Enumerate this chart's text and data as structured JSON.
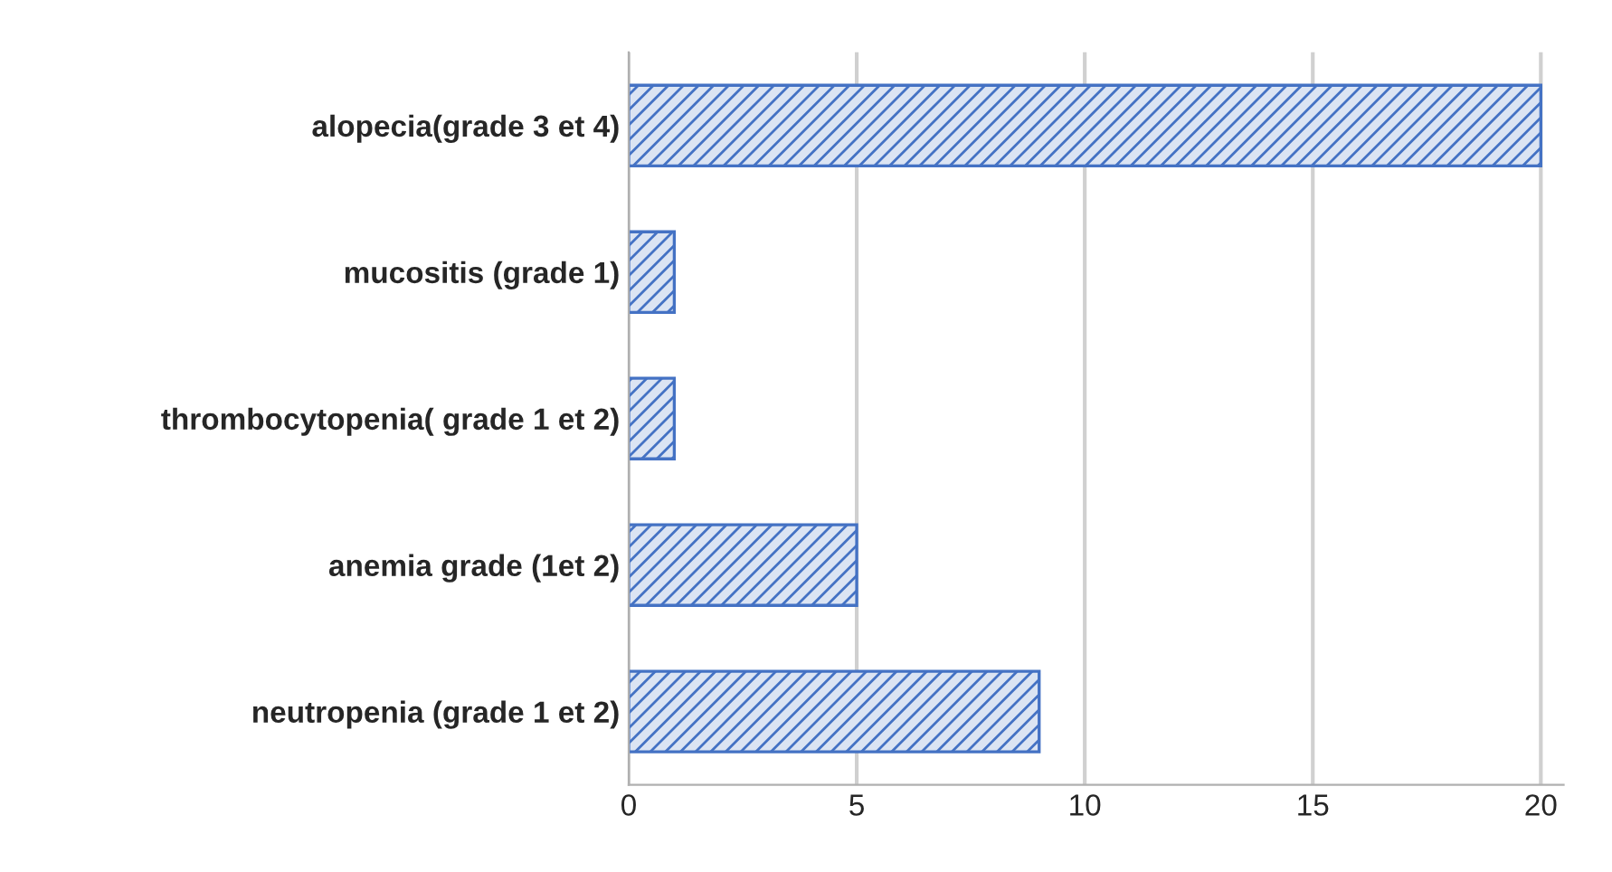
{
  "chart_data": {
    "type": "bar",
    "orientation": "horizontal",
    "categories": [
      "alopecia(grade 3 et 4)",
      "mucositis (grade 1)",
      "thrombocytopenia( grade 1 et 2)",
      "anemia grade (1et 2)",
      "neutropenia (grade 1 et 2)"
    ],
    "values": [
      20,
      1,
      1,
      5,
      9
    ],
    "color": "#4472c4",
    "xlim": [
      0,
      20.5
    ],
    "xticks": [
      0,
      5,
      10,
      15,
      20
    ],
    "grid": "x"
  }
}
